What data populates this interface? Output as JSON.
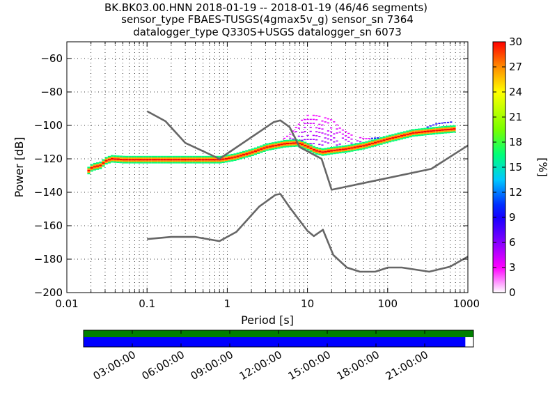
{
  "title": {
    "line1": "BK.BK03.00.HNN   2018-01-19 -- 2018-01-19  (46/46 segments)",
    "line2": "sensor_type FBAES-TUSGS(4gmax5v_g) sensor_sn 7364",
    "line3": "datalogger_type Q330S+USGS datalogger_sn 6073"
  },
  "chart_data": {
    "type": "heatmap",
    "xlabel": "Period [s]",
    "ylabel": "Power [dB]",
    "xscale": "log",
    "xlim": [
      0.01,
      1000
    ],
    "ylim": [
      -200,
      -50
    ],
    "x_tick_labels": [
      "0.01",
      "0.1",
      "1",
      "10",
      "100",
      "1000"
    ],
    "x_tick_values": [
      0.01,
      0.1,
      1,
      10,
      100,
      1000
    ],
    "y_tick_values": [
      -60,
      -80,
      -100,
      -120,
      -140,
      -160,
      -180,
      -200
    ],
    "y_tick_labels": [
      "−60",
      "−80",
      "−100",
      "−120",
      "−140",
      "−160",
      "−180",
      "−200"
    ],
    "grid": true,
    "noise_models": [
      {
        "x": [
          0.1,
          0.17,
          0.3,
          0.8,
          3.8,
          4.6,
          6,
          8,
          15,
          20,
          350,
          1000
        ],
        "y": [
          -91.5,
          -97.5,
          -110.5,
          -120,
          -98,
          -97,
          -101,
          -113,
          -120,
          -138.5,
          -126,
          -112
        ]
      },
      {
        "x": [
          0.1,
          0.2,
          0.4,
          0.8,
          1.3,
          2.5,
          4,
          4.6,
          6,
          10,
          12,
          15.6,
          21,
          31,
          45,
          70,
          101,
          150,
          330,
          600,
          1000
        ],
        "y": [
          -168,
          -166.7,
          -166.7,
          -169.2,
          -163.7,
          -148.6,
          -141.5,
          -141,
          -149,
          -163.1,
          -166.2,
          -162.4,
          -177.5,
          -185,
          -187.5,
          -187.5,
          -185,
          -185,
          -187.5,
          -184.5,
          -178.5
        ]
      }
    ],
    "ppsd_mode": {
      "x": [
        0.018,
        0.02,
        0.025,
        0.03,
        0.035,
        0.05,
        0.1,
        0.3,
        0.8,
        1.2,
        2,
        3,
        5,
        7,
        8,
        10,
        12,
        15,
        20,
        30,
        50,
        100,
        200,
        400,
        700
      ],
      "y": [
        -127,
        -125,
        -124,
        -121,
        -120,
        -120.5,
        -120.5,
        -120.5,
        -120.5,
        -119,
        -116,
        -113,
        -111,
        -110.5,
        -111,
        -113,
        -115,
        -116,
        -115,
        -114,
        -112,
        -108,
        -104.5,
        -103,
        -102
      ]
    },
    "ppsd_spread": {
      "x": [
        4,
        6,
        8,
        9,
        12,
        15,
        20,
        25,
        35,
        50,
        100,
        200,
        400,
        600
      ],
      "y_upper": [
        -111,
        -105,
        -98,
        -94,
        -94,
        -95,
        -97,
        -102,
        -106,
        -108,
        -107,
        -104,
        -99,
        -98
      ],
      "y_lower": [
        -112,
        -112,
        -113,
        -115,
        -117,
        -118,
        -118,
        -117,
        -115,
        -113,
        -109,
        -106,
        -106,
        -105
      ]
    },
    "colorbar": {
      "label": "[%]",
      "min": 0,
      "max": 30,
      "tick_values": [
        0,
        3,
        6,
        9,
        12,
        15,
        18,
        21,
        24,
        27,
        30
      ],
      "tick_labels": [
        "0",
        "3",
        "6",
        "9",
        "12",
        "15",
        "18",
        "21",
        "24",
        "27",
        "30"
      ]
    },
    "timeline": {
      "labels": [
        "03:00:00",
        "06:00:00",
        "09:00:00",
        "12:00:00",
        "15:00:00",
        "18:00:00",
        "21:00:00"
      ],
      "hours": [
        3,
        6,
        9,
        12,
        15,
        18,
        21
      ],
      "start_hour": 0,
      "end_hour": 24,
      "covered_until_hour": 23.5,
      "top_bar_color": "#008000",
      "bottom_bar_color": "#0000ff"
    }
  }
}
